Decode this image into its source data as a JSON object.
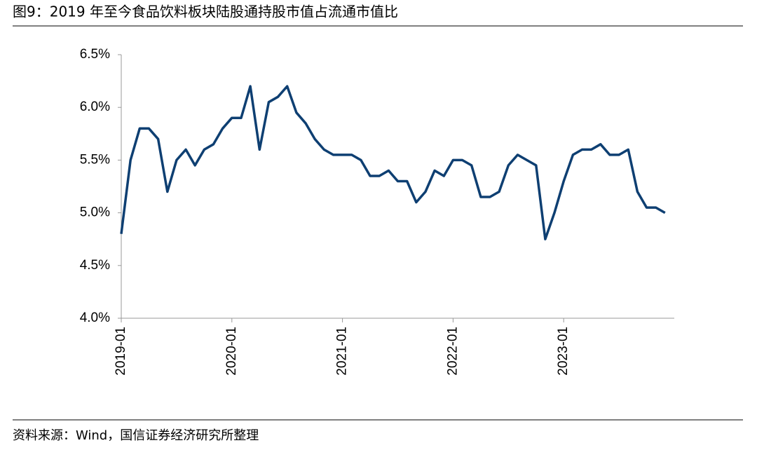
{
  "chart_data": {
    "type": "line",
    "title": "图9：2019 年至今食品饮料板块陆股通持股市值占流通市值比",
    "source": "资料来源：Wind，国信证券经济研究所整理",
    "x": [
      "2019-01",
      "2019-02",
      "2019-03",
      "2019-04",
      "2019-05",
      "2019-06",
      "2019-07",
      "2019-08",
      "2019-09",
      "2019-10",
      "2019-11",
      "2019-12",
      "2020-01",
      "2020-02",
      "2020-03",
      "2020-04",
      "2020-05",
      "2020-06",
      "2020-07",
      "2020-08",
      "2020-09",
      "2020-10",
      "2020-11",
      "2020-12",
      "2021-01",
      "2021-02",
      "2021-03",
      "2021-04",
      "2021-05",
      "2021-06",
      "2021-07",
      "2021-08",
      "2021-09",
      "2021-10",
      "2021-11",
      "2021-12",
      "2022-01",
      "2022-02",
      "2022-03",
      "2022-04",
      "2022-05",
      "2022-06",
      "2022-07",
      "2022-08",
      "2022-09",
      "2022-10",
      "2022-11",
      "2022-12",
      "2023-01",
      "2023-02",
      "2023-03",
      "2023-04",
      "2023-05",
      "2023-06",
      "2023-07",
      "2023-08",
      "2023-09",
      "2023-10",
      "2023-11",
      "2023-12"
    ],
    "series": [
      {
        "name": "陆股通持股市值占流通市值比",
        "color": "#0e3f72",
        "values": [
          4.8,
          5.5,
          5.8,
          5.8,
          5.7,
          5.2,
          5.5,
          5.6,
          5.45,
          5.6,
          5.65,
          5.8,
          5.9,
          5.9,
          6.2,
          5.6,
          6.05,
          6.1,
          6.2,
          5.95,
          5.85,
          5.7,
          5.6,
          5.55,
          5.55,
          5.55,
          5.5,
          5.35,
          5.35,
          5.4,
          5.3,
          5.3,
          5.1,
          5.2,
          5.4,
          5.35,
          5.5,
          5.5,
          5.45,
          5.15,
          5.15,
          5.2,
          5.45,
          5.55,
          5.5,
          5.45,
          4.75,
          5.0,
          5.3,
          5.55,
          5.6,
          5.6,
          5.65,
          5.55,
          5.55,
          5.6,
          5.2,
          5.05,
          5.05,
          5.0
        ]
      }
    ],
    "xlim": [
      "2019-01",
      "2024-01"
    ],
    "xticks": [
      "2019-01",
      "2020-01",
      "2021-01",
      "2022-01",
      "2023-01"
    ],
    "ylim": [
      4.0,
      6.5
    ],
    "yticks": [
      {
        "value": 4.0,
        "label": "4.0%"
      },
      {
        "value": 4.5,
        "label": "4.5%"
      },
      {
        "value": 5.0,
        "label": "5.0%"
      },
      {
        "value": 5.5,
        "label": "5.5%"
      },
      {
        "value": 6.0,
        "label": "6.0%"
      },
      {
        "value": 6.5,
        "label": "6.5%"
      }
    ],
    "grid": false
  }
}
